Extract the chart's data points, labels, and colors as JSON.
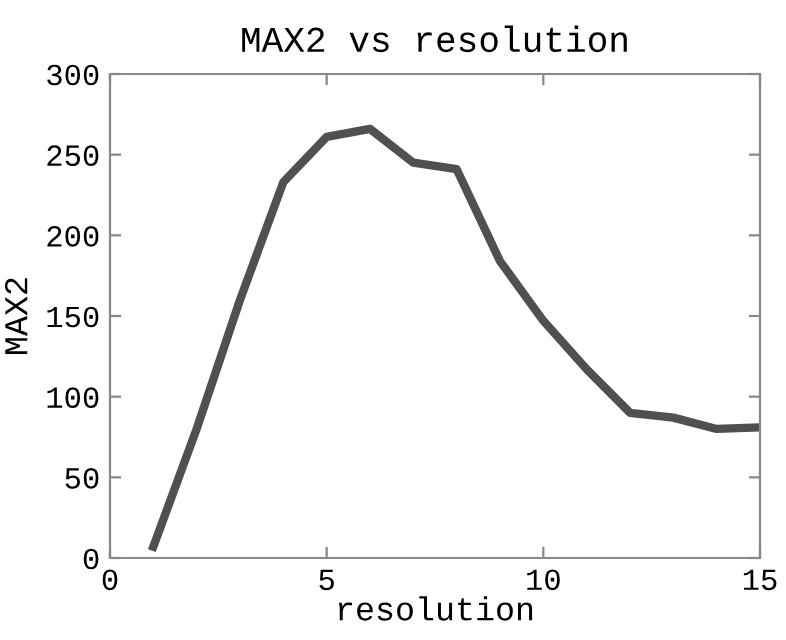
{
  "chart_data": {
    "type": "line",
    "title": "MAX2 vs resolution",
    "xlabel": "resolution",
    "ylabel": "MAX2",
    "x": [
      1,
      2,
      3,
      4,
      5,
      6,
      7,
      8,
      9,
      10,
      11,
      12,
      13,
      14,
      15
    ],
    "series": [
      {
        "color": "#505050",
        "values": [
          7,
          80,
          160,
          233,
          261,
          266,
          245,
          241,
          184,
          147,
          117,
          90,
          87,
          80,
          81
        ]
      }
    ],
    "xlim": [
      0,
      15
    ],
    "xticks": [
      0,
      5,
      10,
      15
    ],
    "ylim": [
      0,
      300
    ],
    "yticks": [
      0,
      50,
      100,
      150,
      200,
      250,
      300
    ],
    "grid": false,
    "legend": false,
    "marker": "none",
    "line_style": "solid"
  }
}
